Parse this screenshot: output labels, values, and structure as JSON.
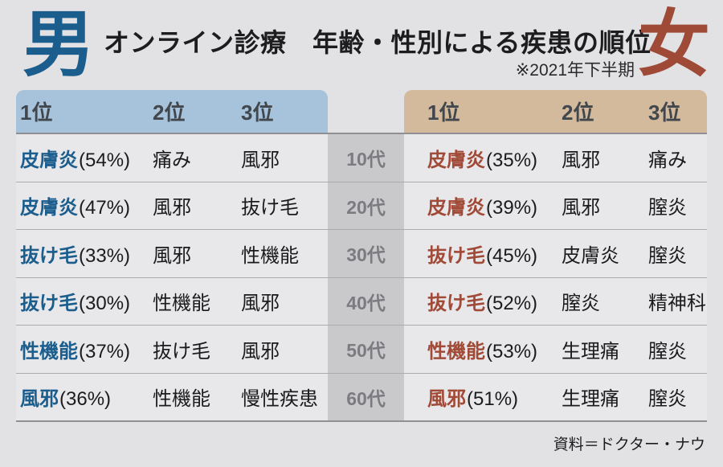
{
  "page": {
    "title": "オンライン診療　年齢・性別による疾患の順位",
    "note": "※2021年下半期",
    "source": "資料＝ドクター・ナウ"
  },
  "male": {
    "symbol": "男",
    "accent_color": "#1b5e8e",
    "header_bg": "#a6c3db",
    "rank_headers": [
      "1位",
      "2位",
      "3位"
    ]
  },
  "female": {
    "symbol": "女",
    "accent_color": "#9e4a37",
    "header_bg": "#d4ba9c",
    "rank_headers": [
      "1位",
      "2位",
      "3位"
    ]
  },
  "rows": [
    {
      "age": "10代",
      "male": {
        "first": "皮膚炎",
        "first_pct": "(54%)",
        "second": "痛み",
        "third": "風邪"
      },
      "female": {
        "first": "皮膚炎",
        "first_pct": "(35%)",
        "second": "風邪",
        "third": "痛み"
      }
    },
    {
      "age": "20代",
      "male": {
        "first": "皮膚炎",
        "first_pct": "(47%)",
        "second": "風邪",
        "third": "抜け毛"
      },
      "female": {
        "first": "皮膚炎",
        "first_pct": "(39%)",
        "second": "風邪",
        "third": "膣炎"
      }
    },
    {
      "age": "30代",
      "male": {
        "first": "抜け毛",
        "first_pct": "(33%)",
        "second": "風邪",
        "third": "性機能"
      },
      "female": {
        "first": "抜け毛",
        "first_pct": "(45%)",
        "second": "皮膚炎",
        "third": "膣炎"
      }
    },
    {
      "age": "40代",
      "male": {
        "first": "抜け毛",
        "first_pct": "(30%)",
        "second": "性機能",
        "third": "風邪"
      },
      "female": {
        "first": "抜け毛",
        "first_pct": "(52%)",
        "second": "膣炎",
        "third": "精神科"
      }
    },
    {
      "age": "50代",
      "male": {
        "first": "性機能",
        "first_pct": "(37%)",
        "second": "抜け毛",
        "third": "風邪"
      },
      "female": {
        "first": "性機能",
        "first_pct": "(53%)",
        "second": "生理痛",
        "third": "膣炎"
      }
    },
    {
      "age": "60代",
      "male": {
        "first": "風邪",
        "first_pct": "(36%)",
        "second": "性機能",
        "third": "慢性疾患"
      },
      "female": {
        "first": "風邪",
        "first_pct": "(51%)",
        "second": "生理痛",
        "third": "膣炎"
      }
    }
  ],
  "chart_data": {
    "type": "table",
    "title": "オンライン診療　年齢・性別による疾患の順位",
    "subtitle": "※2021年下半期",
    "source": "資料＝ドクター・ナウ",
    "categories": [
      "10代",
      "20代",
      "30代",
      "40代",
      "50代",
      "60代"
    ],
    "series": [
      {
        "name": "男 1位",
        "values": [
          "皮膚炎(54%)",
          "皮膚炎(47%)",
          "抜け毛(33%)",
          "抜け毛(30%)",
          "性機能(37%)",
          "風邪(36%)"
        ]
      },
      {
        "name": "男 2位",
        "values": [
          "痛み",
          "風邪",
          "風邪",
          "性機能",
          "抜け毛",
          "性機能"
        ]
      },
      {
        "name": "男 3位",
        "values": [
          "風邪",
          "抜け毛",
          "性機能",
          "風邪",
          "風邪",
          "慢性疾患"
        ]
      },
      {
        "name": "女 1位",
        "values": [
          "皮膚炎(35%)",
          "皮膚炎(39%)",
          "抜け毛(45%)",
          "抜け毛(52%)",
          "性機能(53%)",
          "風邪(51%)"
        ]
      },
      {
        "name": "女 2位",
        "values": [
          "風邪",
          "風邪",
          "皮膚炎",
          "膣炎",
          "生理痛",
          "生理痛"
        ]
      },
      {
        "name": "女 3位",
        "values": [
          "痛み",
          "膣炎",
          "膣炎",
          "精神科",
          "膣炎",
          "膣炎"
        ]
      }
    ]
  }
}
